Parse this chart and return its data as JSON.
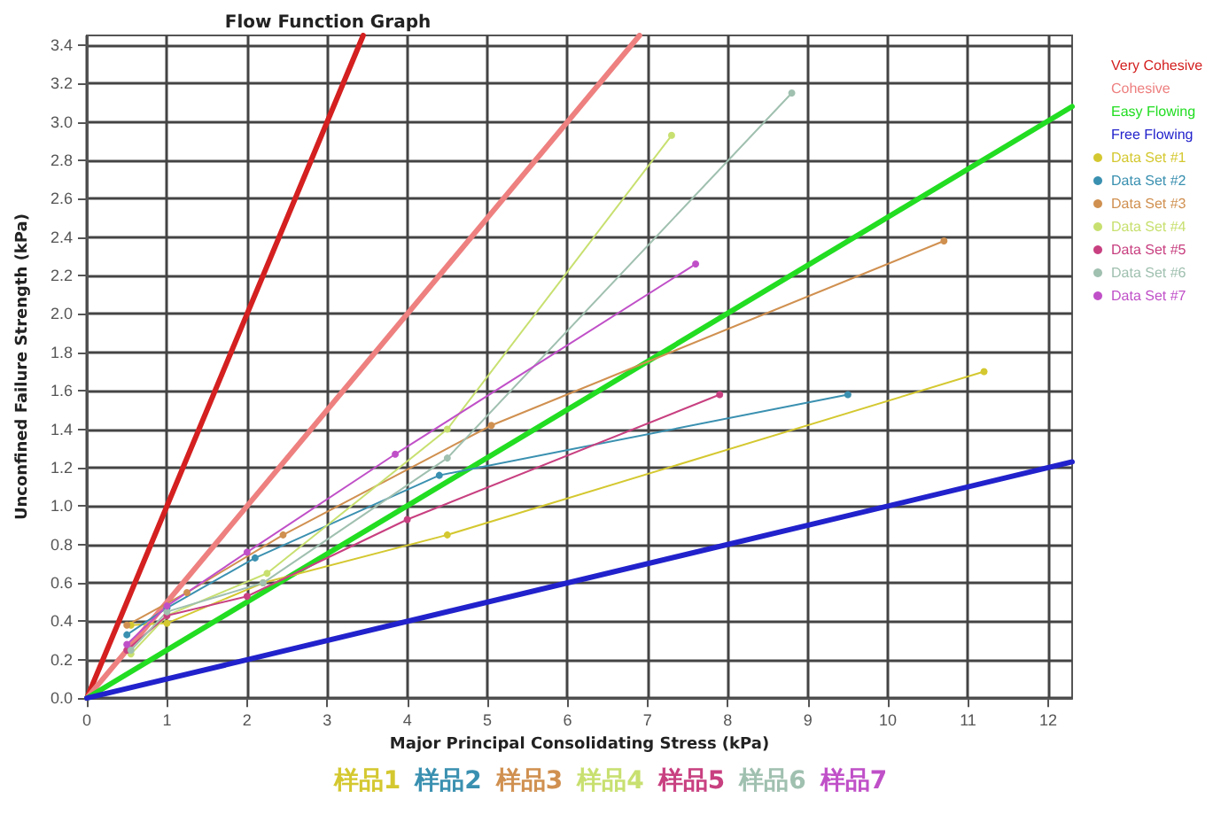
{
  "chart_data": {
    "type": "line",
    "title": "Flow Function Graph",
    "xlabel": "Major Principal Consolidating Stress (kPa)",
    "ylabel": "Unconfined Failure Strength (kPa)",
    "xlim": [
      0,
      12.3
    ],
    "xticks": [
      0,
      1,
      2,
      3,
      4,
      5,
      6,
      7,
      8,
      9,
      10,
      11,
      12
    ],
    "ylim": [
      0,
      3.45
    ],
    "yticks": [
      {
        "value": 0,
        "label": "0.0"
      },
      {
        "value": 0.2,
        "label": "0.2"
      },
      {
        "value": 0.4,
        "label": "0.4"
      },
      {
        "value": 0.6,
        "label": "0.6"
      },
      {
        "value": 0.8,
        "label": "0.8"
      },
      {
        "value": 1,
        "label": "1.0"
      },
      {
        "value": 1.2,
        "label": "1.2"
      },
      {
        "value": 1.4,
        "label": "1.4"
      },
      {
        "value": 1.6,
        "label": "1.6"
      },
      {
        "value": 1.8,
        "label": "1.8"
      },
      {
        "value": 2,
        "label": "2.0"
      },
      {
        "value": 2.2,
        "label": "2.2"
      },
      {
        "value": 2.4,
        "label": "2.4"
      },
      {
        "value": 2.6,
        "label": "2.6"
      },
      {
        "value": 2.8,
        "label": "2.8"
      },
      {
        "value": 3,
        "label": "3.0"
      },
      {
        "value": 3.2,
        "label": "3.2"
      },
      {
        "value": 3.4,
        "label": "3.4"
      }
    ],
    "grid": true,
    "legend": "right",
    "marker": "circle",
    "line_style": "solid",
    "series": [
      {
        "name": "Very Cohesive",
        "color": "#d42020",
        "x": [
          0,
          3.45
        ],
        "values": [
          0,
          3.45
        ],
        "marker": "none"
      },
      {
        "name": "Cohesive",
        "color": "#ee8080",
        "x": [
          0,
          6.9
        ],
        "values": [
          0,
          3.45
        ],
        "marker": "none"
      },
      {
        "name": "Easy Flowing",
        "color": "#22dd22",
        "x": [
          0,
          12.3
        ],
        "values": [
          0,
          3.08
        ],
        "marker": "none"
      },
      {
        "name": "Free Flowing",
        "color": "#2222cc",
        "x": [
          0,
          12.3
        ],
        "values": [
          0,
          1.23
        ],
        "marker": "none"
      },
      {
        "name": "Data Set #1",
        "color": "#d4c830",
        "x": [
          0.55,
          1.0,
          2.2,
          4.5,
          11.2
        ],
        "values": [
          0.38,
          0.39,
          0.6,
          0.85,
          1.7
        ]
      },
      {
        "name": "Data Set #2",
        "color": "#3a90b0",
        "x": [
          0.5,
          1.0,
          2.1,
          4.4,
          9.5
        ],
        "values": [
          0.33,
          0.47,
          0.73,
          1.16,
          1.58
        ]
      },
      {
        "name": "Data Set #3",
        "color": "#d09050",
        "x": [
          0.5,
          1.25,
          2.45,
          5.05,
          10.7
        ],
        "values": [
          0.38,
          0.55,
          0.85,
          1.42,
          2.38
        ]
      },
      {
        "name": "Data Set #4",
        "color": "#c8e070",
        "x": [
          0.55,
          1.0,
          2.25,
          4.5,
          7.3
        ],
        "values": [
          0.23,
          0.43,
          0.65,
          1.4,
          2.93
        ]
      },
      {
        "name": "Data Set #5",
        "color": "#c84080",
        "x": [
          0.5,
          1.0,
          2.0,
          4.0,
          7.9
        ],
        "values": [
          0.25,
          0.43,
          0.53,
          0.93,
          1.58
        ]
      },
      {
        "name": "Data Set #6",
        "color": "#a0c0b0",
        "x": [
          0.55,
          1.0,
          2.2,
          4.5,
          8.8
        ],
        "values": [
          0.25,
          0.45,
          0.6,
          1.25,
          3.15
        ]
      },
      {
        "name": "Data Set #7",
        "color": "#c050c8",
        "x": [
          0.5,
          1.0,
          2.0,
          3.85,
          7.6
        ],
        "values": [
          0.28,
          0.48,
          0.76,
          1.27,
          2.26
        ]
      }
    ],
    "annotations": [
      "样品1",
      "样品2",
      "样品3",
      "样品4",
      "样品5",
      "样品6",
      "样品7"
    ]
  }
}
